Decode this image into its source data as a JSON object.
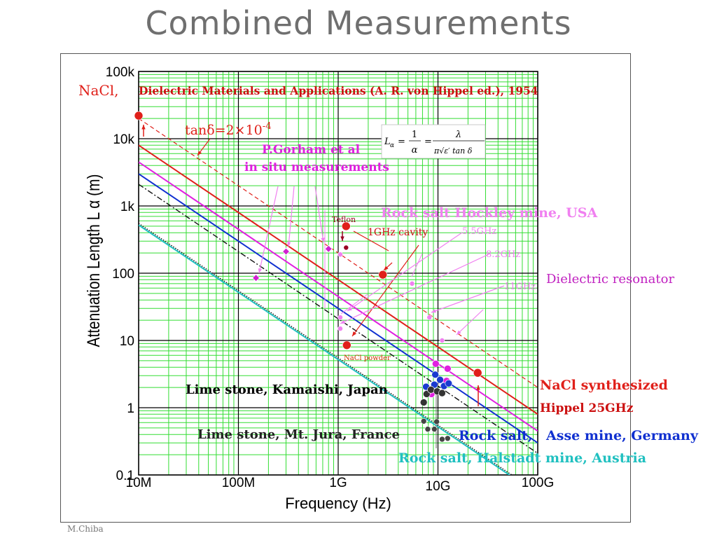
{
  "slide": {
    "title": "Combined Measurements",
    "credit": "M.Chiba"
  },
  "colors": {
    "grid_minor": "#33dd33",
    "grid_major": "#000000",
    "red": "#e0201a",
    "magenta": "#e020e0",
    "blue": "#1030d0",
    "cyan": "#20c0c0",
    "black": "#222222",
    "pink": "#f080f0",
    "purple": "#c040c0",
    "darkred": "#990022"
  },
  "chart_data": {
    "type": "line",
    "title": "",
    "xlabel": "Frequency (Hz)",
    "ylabel": "Attenuation Length L α (m)",
    "xscale": "log",
    "yscale": "log",
    "xlim": [
      10000000,
      100000000000
    ],
    "ylim": [
      0.1,
      100000
    ],
    "xticks": [
      {
        "value": 10000000,
        "label": "10M"
      },
      {
        "value": 100000000,
        "label": "100M"
      },
      {
        "value": 1000000000,
        "label": "1G"
      },
      {
        "value": 10000000000,
        "label": "10G"
      },
      {
        "value": 100000000000,
        "label": "100G"
      }
    ],
    "yticks": [
      {
        "value": 0.1,
        "label": "0.1"
      },
      {
        "value": 1,
        "label": "1"
      },
      {
        "value": 10,
        "label": "10"
      },
      {
        "value": 100,
        "label": "100"
      },
      {
        "value": 1000,
        "label": "1k"
      },
      {
        "value": 10000,
        "label": "10k"
      },
      {
        "value": 100000,
        "label": "100k"
      }
    ],
    "grid": true,
    "series": [
      {
        "name": "tanδ=2×10-4",
        "color": "#e0201a",
        "dash": "6,4",
        "width": 1.2,
        "x": [
          10000000,
          100000000000
        ],
        "y": [
          20000,
          2
        ]
      },
      {
        "name": "Hippel 25GHz",
        "color": "#e0201a",
        "dash": "",
        "width": 2,
        "x": [
          10000000,
          100000000000
        ],
        "y": [
          8000,
          0.8
        ]
      },
      {
        "name": "Rock salt Hockley mine, USA",
        "color": "#e020e0",
        "dash": "",
        "width": 2,
        "x": [
          10000000,
          100000000000
        ],
        "y": [
          4500,
          0.45
        ]
      },
      {
        "name": "Rock salt, Asse mine, Germany",
        "color": "#1030d0",
        "dash": "",
        "width": 2,
        "x": [
          10000000,
          100000000000
        ],
        "y": [
          3000,
          0.3
        ]
      },
      {
        "name": "Lime stone, Kamaishi, Japan",
        "color": "#111111",
        "dash": "8,3,2,3",
        "width": 1.4,
        "x": [
          10000000,
          100000000000
        ],
        "y": [
          2100,
          0.21
        ]
      },
      {
        "name": "Lime stone, Mt. Jura, France",
        "color": "#111111",
        "dash": "1.5,2",
        "width": 1.4,
        "x": [
          10000000,
          100000000000
        ],
        "y": [
          550,
          0.055
        ]
      },
      {
        "name": "Rock salt, Halstadt mine, Austria",
        "color": "#20c0c0",
        "dash": "",
        "width": 2,
        "x": [
          10000000,
          100000000000
        ],
        "y": [
          520,
          0.052
        ]
      }
    ],
    "points": [
      {
        "group": "NaCl 1954",
        "color": "#e0201a",
        "r": 6,
        "x": 10000000,
        "y": 22000
      },
      {
        "group": "Teflon",
        "color": "#e0201a",
        "r": 6,
        "x": 1200000000,
        "y": 500
      },
      {
        "group": "NaCl 1954",
        "color": "#e0201a",
        "r": 6,
        "x": 2800000000,
        "y": 95
      },
      {
        "group": "NaCl powder",
        "color": "#e0201a",
        "r": 6,
        "x": 1220000000,
        "y": 8.5
      },
      {
        "group": "NaCl synthesized",
        "color": "#e0201a",
        "r": 6,
        "x": 25000000000,
        "y": 3.3
      },
      {
        "group": "Teflon",
        "color": "#990022",
        "r": 3.5,
        "x": 1200000000,
        "y": 240
      },
      {
        "group": "P.Gorham",
        "color": "#d020d0",
        "r": 5,
        "x": 150000000,
        "y": 85,
        "shape": "diamond"
      },
      {
        "group": "P.Gorham",
        "color": "#d020d0",
        "r": 5,
        "x": 300000000,
        "y": 210,
        "shape": "diamond"
      },
      {
        "group": "P.Gorham",
        "color": "#d020d0",
        "r": 5,
        "x": 800000000,
        "y": 230,
        "shape": "diamond"
      },
      {
        "group": "Dielectric resonator",
        "color": "#f080f0",
        "r": 3.5,
        "x": 1050000000,
        "y": 190
      },
      {
        "group": "Dielectric resonator",
        "color": "#f080f0",
        "r": 3.5,
        "x": 1050000000,
        "y": 22
      },
      {
        "group": "Dielectric resonator",
        "color": "#f080f0",
        "r": 3.5,
        "x": 1050000000,
        "y": 15
      },
      {
        "group": "Dielectric resonator",
        "color": "#f080f0",
        "r": 3.5,
        "x": 5500000000,
        "y": 70
      },
      {
        "group": "Dielectric resonator",
        "color": "#f080f0",
        "r": 3.5,
        "x": 8200000000,
        "y": 22
      },
      {
        "group": "Dielectric resonator",
        "color": "#f080f0",
        "r": 3.5,
        "x": 11000000000,
        "y": 10
      },
      {
        "group": "Hockley",
        "color": "#e020e0",
        "r": 5,
        "x": 9500000000,
        "y": 4.5
      },
      {
        "group": "Hockley",
        "color": "#e020e0",
        "r": 5,
        "x": 12500000000,
        "y": 3.8
      },
      {
        "group": "Hockley",
        "color": "#e020e0",
        "r": 5,
        "x": 12200000000,
        "y": 2.5
      },
      {
        "group": "Hockley",
        "color": "#e020e0",
        "r": 5,
        "x": 8600000000,
        "y": 1.6
      },
      {
        "group": "Asse",
        "color": "#1a3ad0",
        "r": 5,
        "x": 9400000000,
        "y": 3.1
      },
      {
        "group": "Asse",
        "color": "#1a3ad0",
        "r": 5,
        "x": 10500000000,
        "y": 2.6
      },
      {
        "group": "Asse",
        "color": "#1a3ad0",
        "r": 5,
        "x": 9200000000,
        "y": 2.2
      },
      {
        "group": "Asse",
        "color": "#1a3ad0",
        "r": 5,
        "x": 11500000000,
        "y": 2.1
      },
      {
        "group": "Asse",
        "color": "#1a3ad0",
        "r": 5,
        "x": 8000000000,
        "y": 1.9
      },
      {
        "group": "Asse",
        "color": "#1a3ad0",
        "r": 5,
        "x": 7600000000,
        "y": 2.05
      },
      {
        "group": "Asse",
        "color": "#1a3ad0",
        "r": 5,
        "x": 12800000000,
        "y": 2.3
      },
      {
        "group": "Kamaishi",
        "color": "#333333",
        "r": 5,
        "x": 7200000000,
        "y": 1.2
      },
      {
        "group": "Kamaishi",
        "color": "#333333",
        "r": 5,
        "x": 7700000000,
        "y": 1.6
      },
      {
        "group": "Kamaishi",
        "color": "#333333",
        "r": 5,
        "x": 8500000000,
        "y": 1.85
      },
      {
        "group": "Kamaishi",
        "color": "#333333",
        "r": 5,
        "x": 9800000000,
        "y": 1.75
      },
      {
        "group": "Kamaishi",
        "color": "#333333",
        "r": 5,
        "x": 11000000000,
        "y": 1.65
      },
      {
        "group": "Jura",
        "color": "#444444",
        "r": 4,
        "x": 7200000000,
        "y": 0.63
      },
      {
        "group": "Jura",
        "color": "#444444",
        "r": 4,
        "x": 7900000000,
        "y": 0.48
      },
      {
        "group": "Jura",
        "color": "#444444",
        "r": 4,
        "x": 9200000000,
        "y": 0.48
      },
      {
        "group": "Jura",
        "color": "#444444",
        "r": 4,
        "x": 9700000000,
        "y": 0.62
      },
      {
        "group": "Jura",
        "color": "#444444",
        "r": 4,
        "x": 11000000000,
        "y": 0.34
      },
      {
        "group": "Jura",
        "color": "#444444",
        "r": 4,
        "x": 12500000000,
        "y": 0.35
      }
    ],
    "annotations": [
      {
        "label": "NaCl,",
        "color": "#e0201a"
      },
      {
        "label": "Dielectric Materials and Applications (A. R. von Hippel ed.), 1954",
        "color": "#cc1010"
      },
      {
        "label": "tanδ=2×10",
        "sup": "-4",
        "color": "#e0201a"
      },
      {
        "label": "P.Gorham et al",
        "color": "#e020e0"
      },
      {
        "label": "in situ measurements",
        "color": "#e020e0"
      },
      {
        "label": "Rock salt Hockley mine, USA",
        "color": "#f080f0"
      },
      {
        "label": "Teflon",
        "color": "#990022"
      },
      {
        "label": "1GHz  cavity",
        "color": "#cc1010"
      },
      {
        "label": "5.5GHz",
        "color": "#f080f0"
      },
      {
        "label": "8.2GHz",
        "color": "#f080f0"
      },
      {
        "label": "11GHz",
        "color": "#f080f0"
      },
      {
        "label": "Dielectric resonator",
        "color": "#c020c0"
      },
      {
        "label": "NaCl powder",
        "color": "#cc3300"
      },
      {
        "label": "NaCl synthesized",
        "color": "#e0201a"
      },
      {
        "label": "Hippel 25GHz",
        "color": "#cc1010"
      },
      {
        "label": "Lime stone, Kamaishi, Japan",
        "color": "#000000"
      },
      {
        "label": "Lime stone, Mt. Jura, France",
        "color": "#222222"
      },
      {
        "label": "Rock salt,",
        "color": "#1030d0"
      },
      {
        "label": "Asse mine, Germany",
        "color": "#1030d0"
      },
      {
        "label": "Rock salt, Halstadt mine, Austria",
        "color": "#20c0c0"
      }
    ],
    "formula": {
      "lhs": "L",
      "sub": "α",
      "eq1": "=",
      "num1": "1",
      "den1": "α",
      "eq2": "=",
      "num2": "λ",
      "den2": "π√ε′ tan δ"
    }
  }
}
